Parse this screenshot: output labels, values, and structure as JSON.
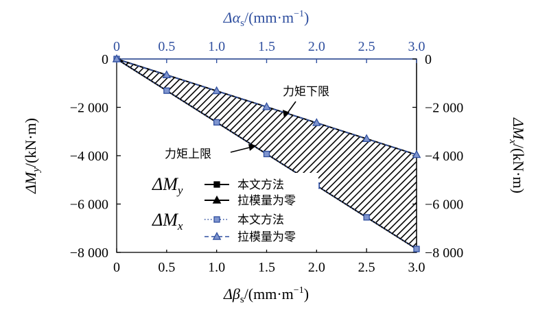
{
  "chart_data": {
    "type": "line",
    "x_bottom": {
      "label_prefix": "Δβ",
      "label_sub": "s",
      "label_suffix": "/(mm·m",
      "label_sup": "−1",
      "label_close": ")",
      "ticks": [
        "0",
        "0.5",
        "1.0",
        "1.5",
        "2.0",
        "2.5",
        "3.0"
      ],
      "range": [
        0,
        3.0
      ]
    },
    "x_top": {
      "label_prefix": "Δα",
      "label_sub": "s",
      "label_suffix": "/(mm·m",
      "label_sup": "−1",
      "label_close": ")",
      "ticks": [
        "0",
        "0.5",
        "1.0",
        "1.5",
        "2.0",
        "2.5",
        "3.0"
      ],
      "range": [
        0,
        3.0
      ]
    },
    "y_left": {
      "label_prefix": "ΔM",
      "label_sub": "y",
      "label_suffix": "/(kN·m)",
      "ticks": [
        "0",
        "−2 000",
        "−4 000",
        "−6 000",
        "−8 000"
      ],
      "range": [
        -8000,
        0
      ]
    },
    "y_right": {
      "label_prefix": "ΔM",
      "label_sub": "x",
      "label_suffix": "/(kN·m)",
      "ticks": [
        "0",
        "−2 000",
        "−4 000",
        "−6 000",
        "−8 000"
      ],
      "range": [
        -8000,
        0
      ]
    },
    "x": [
      0,
      0.5,
      1.0,
      1.5,
      2.0,
      2.5,
      3.0
    ],
    "series": [
      {
        "group": "y",
        "name": "本文方法",
        "marker": "square",
        "color": "#000000",
        "dash": "solid",
        "values": [
          0,
          -1310,
          -2620,
          -3930,
          -5240,
          -6550,
          -7860
        ]
      },
      {
        "group": "y",
        "name": "拉模量为零",
        "marker": "triangle",
        "color": "#000000",
        "dash": "solid",
        "values": [
          0,
          -660,
          -1320,
          -1980,
          -2640,
          -3300,
          -3960
        ]
      },
      {
        "group": "x",
        "name": "本文方法",
        "marker": "square",
        "color": "#2f4f9f",
        "dash": "dotted",
        "values": [
          0,
          -1310,
          -2620,
          -3930,
          -5240,
          -6550,
          -7860
        ]
      },
      {
        "group": "x",
        "name": "拉模量为零",
        "marker": "triangle",
        "color": "#2f4f9f",
        "dash": "dashed",
        "values": [
          0,
          -660,
          -1320,
          -1980,
          -2640,
          -3300,
          -3960
        ]
      }
    ],
    "legend": {
      "group_y_prefix": "ΔM",
      "group_y_sub": "y",
      "group_x_prefix": "ΔM",
      "group_x_sub": "x",
      "placement": "lower-left"
    },
    "annotations": {
      "upper": "力矩下限",
      "lower": "力矩上限"
    },
    "hatched_region": "between series",
    "grid": false
  }
}
